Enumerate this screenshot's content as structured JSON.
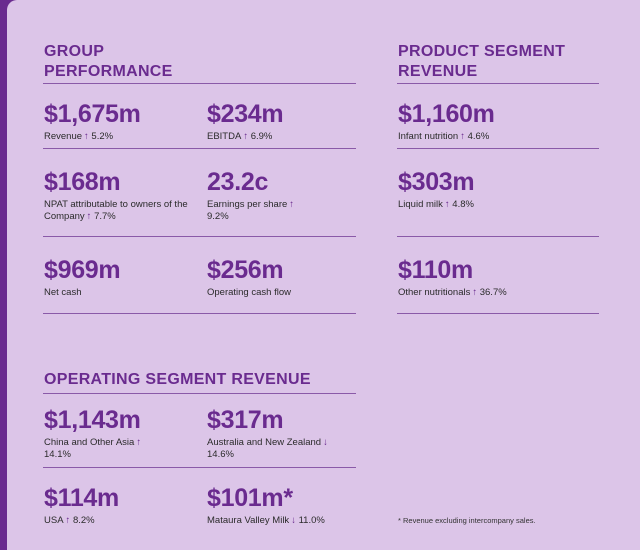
{
  "group_performance": {
    "heading": "GROUP\nPERFORMANCE",
    "stats": [
      {
        "value": "$1,675m",
        "label": "Revenue",
        "change_dir": "↑",
        "change": "5.2%"
      },
      {
        "value": "$234m",
        "label": "EBITDA",
        "change_dir": "↑",
        "change": "6.9%"
      },
      {
        "value": "$168m",
        "label": "NPAT attributable to owners of the Company",
        "change_dir": "↑",
        "change": "7.7%"
      },
      {
        "value": "23.2c",
        "label": "Earnings per share",
        "change_dir": "↑",
        "change": "9.2%"
      },
      {
        "value": "$969m",
        "label": "Net cash",
        "change_dir": "",
        "change": ""
      },
      {
        "value": "$256m",
        "label": "Operating cash flow",
        "change_dir": "",
        "change": ""
      }
    ]
  },
  "product_segment": {
    "heading": "PRODUCT SEGMENT\nREVENUE",
    "stats": [
      {
        "value": "$1,160m",
        "label": "Infant nutrition",
        "change_dir": "↑",
        "change": "4.6%"
      },
      {
        "value": "$303m",
        "label": "Liquid milk",
        "change_dir": "↑",
        "change": "4.8%"
      },
      {
        "value": "$110m",
        "label": "Other nutritionals",
        "change_dir": "↑",
        "change": "36.7%"
      }
    ]
  },
  "operating_segment": {
    "heading": "OPERATING SEGMENT REVENUE",
    "stats": [
      {
        "value": "$1,143m",
        "label": "China and Other Asia",
        "change_dir": "↑",
        "change": "14.1%"
      },
      {
        "value": "$317m",
        "label": "Australia and New Zealand",
        "change_dir": "↓",
        "change": "14.6%"
      },
      {
        "value": "$114m",
        "label": "USA",
        "change_dir": "↑",
        "change": "8.2%"
      },
      {
        "value": "$101m*",
        "label": "Mataura Valley Milk",
        "change_dir": "↓",
        "change": "11.0%"
      }
    ]
  },
  "footnote": "* Revenue excluding intercompany sales.",
  "colors": {
    "accent": "#6a2b8f",
    "panel": "#dcc5e8",
    "text": "#2b2b2b"
  }
}
